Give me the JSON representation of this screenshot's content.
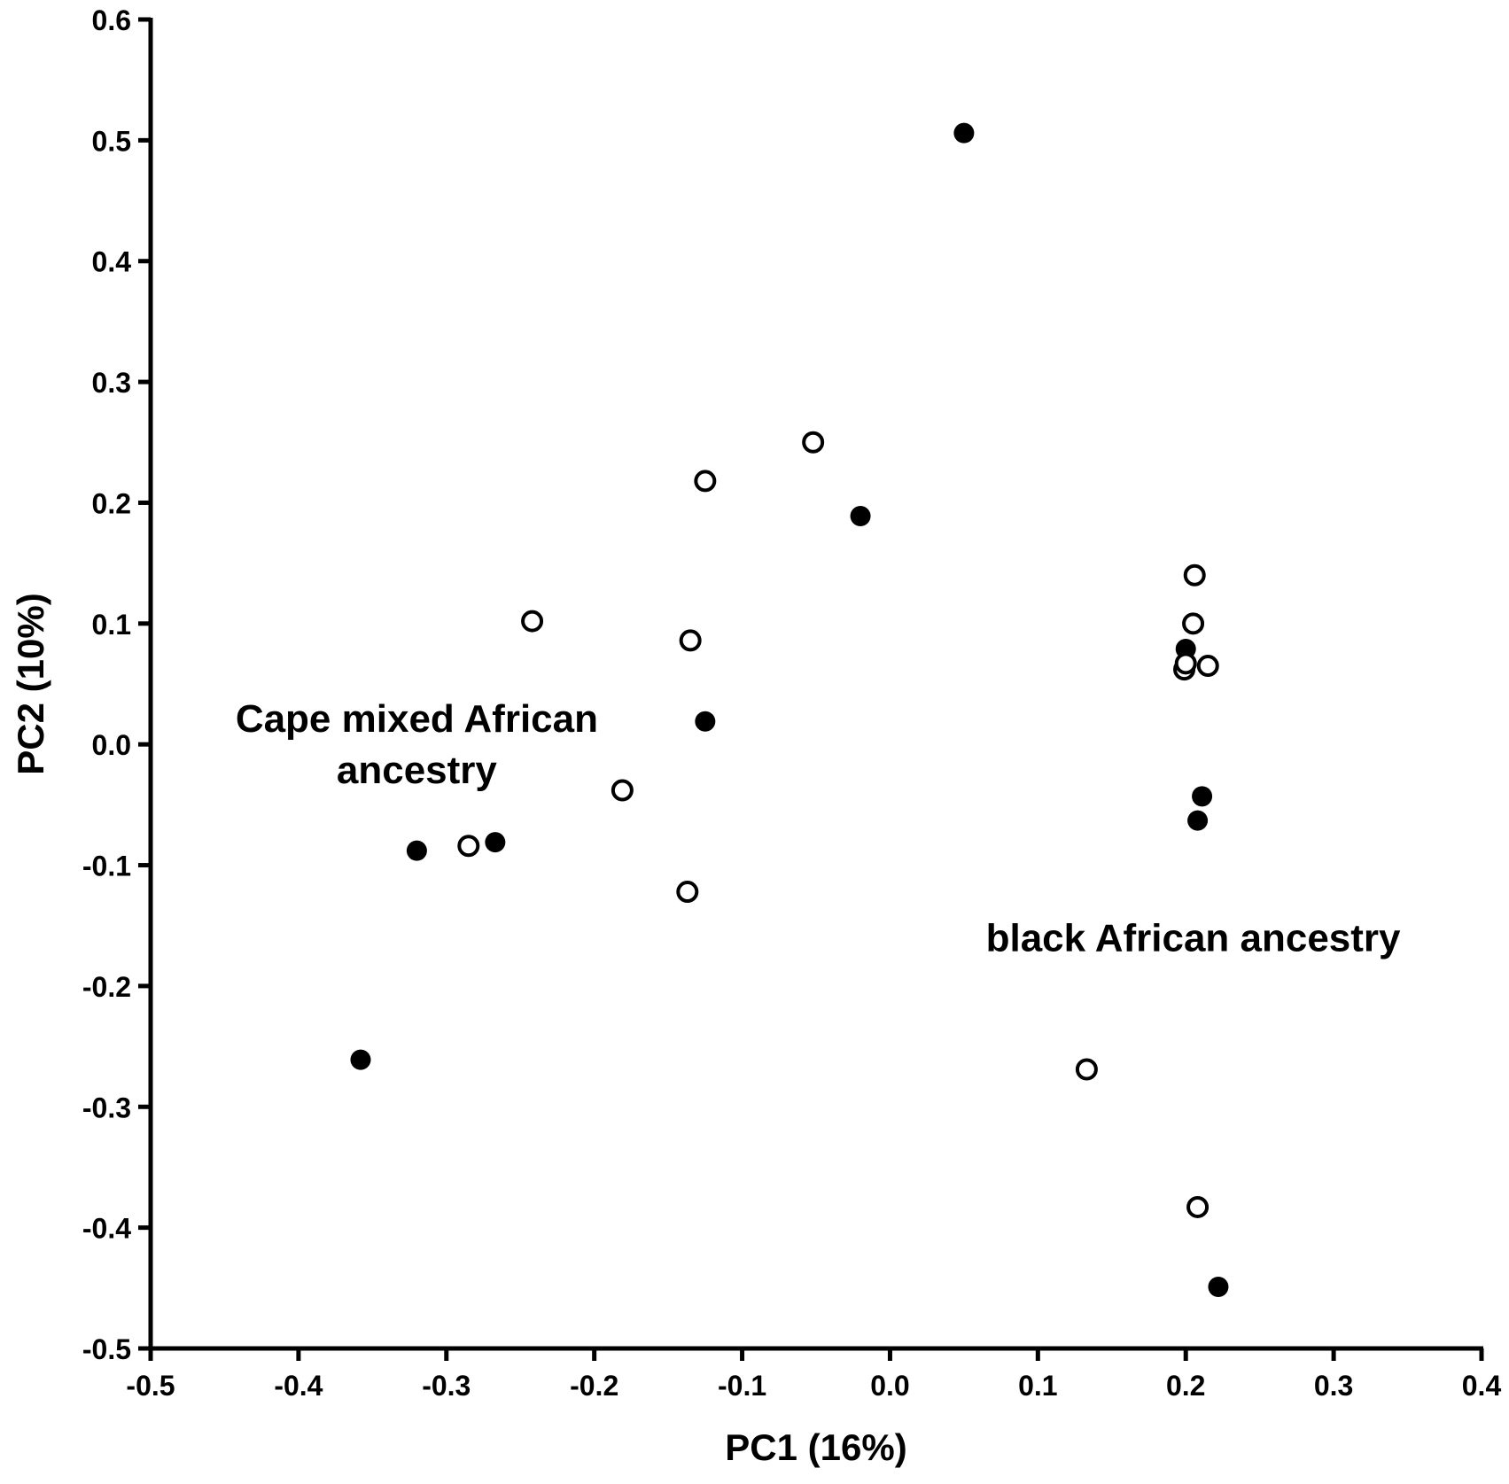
{
  "chart_data": {
    "type": "scatter",
    "title": "",
    "xlabel": "PC1 (16%)",
    "ylabel": "PC2 (10%)",
    "xlim": [
      -0.5,
      0.4
    ],
    "ylim": [
      -0.5,
      0.6
    ],
    "xticks": [
      "-0.5",
      "-0.4",
      "-0.3",
      "-0.2",
      "-0.1",
      "0.0",
      "0.1",
      "0.2",
      "0.3",
      "0.4"
    ],
    "yticks": [
      "0.6",
      "0.5",
      "0.4",
      "0.3",
      "0.2",
      "0.1",
      "0.0",
      "-0.1",
      "-0.2",
      "-0.3",
      "-0.4",
      "-0.5"
    ],
    "grid": false,
    "annotations": [
      {
        "lines": [
          "Cape mixed African",
          "ancestry"
        ],
        "x": -0.32,
        "y": 0.0
      },
      {
        "lines": [
          "black African ancestry"
        ],
        "x": 0.205,
        "y": -0.16
      }
    ],
    "series": [
      {
        "marker": "filled-circle",
        "color": "#000000",
        "points": [
          {
            "x": 0.05,
            "y": 0.506
          },
          {
            "x": -0.02,
            "y": 0.189
          },
          {
            "x": -0.125,
            "y": 0.019
          },
          {
            "x": -0.267,
            "y": -0.081
          },
          {
            "x": -0.32,
            "y": -0.088
          },
          {
            "x": -0.358,
            "y": -0.261
          },
          {
            "x": 0.2,
            "y": 0.079
          },
          {
            "x": 0.208,
            "y": -0.063
          },
          {
            "x": 0.211,
            "y": -0.043
          },
          {
            "x": 0.222,
            "y": -0.449
          }
        ]
      },
      {
        "marker": "open-circle",
        "color": "#000000",
        "points": [
          {
            "x": -0.052,
            "y": 0.25
          },
          {
            "x": -0.125,
            "y": 0.218
          },
          {
            "x": -0.242,
            "y": 0.102
          },
          {
            "x": -0.135,
            "y": 0.086
          },
          {
            "x": -0.181,
            "y": -0.038
          },
          {
            "x": -0.285,
            "y": -0.084
          },
          {
            "x": -0.137,
            "y": -0.122
          },
          {
            "x": 0.206,
            "y": 0.14
          },
          {
            "x": 0.205,
            "y": 0.1
          },
          {
            "x": 0.215,
            "y": 0.065
          },
          {
            "x": 0.199,
            "y": 0.062
          },
          {
            "x": 0.2,
            "y": 0.067
          },
          {
            "x": 0.133,
            "y": -0.269
          },
          {
            "x": 0.208,
            "y": -0.383
          }
        ]
      }
    ]
  }
}
